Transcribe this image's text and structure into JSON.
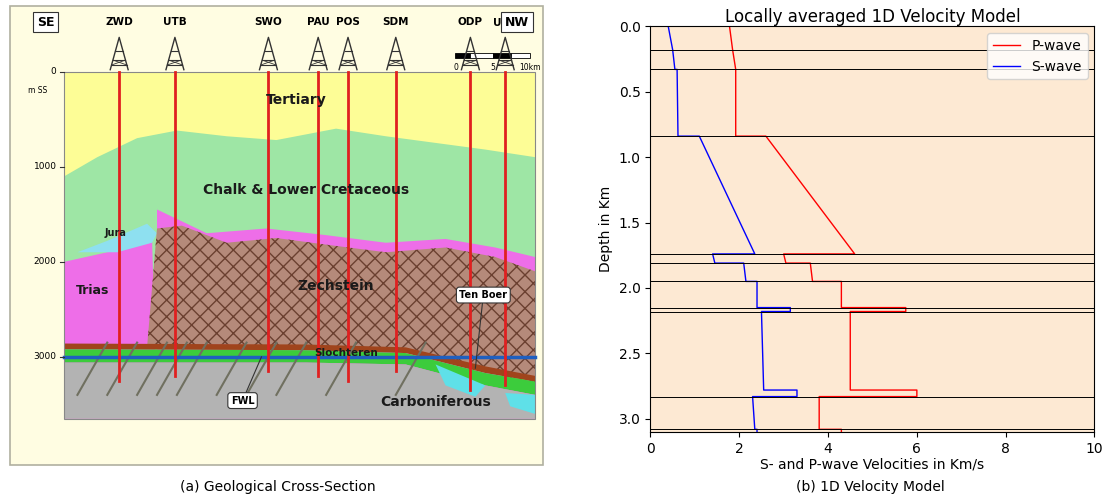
{
  "captions": [
    "(a) Geological Cross-Section",
    "(b) 1D Velocity Model"
  ],
  "cross_section": {
    "directions": [
      "SE",
      "NW"
    ],
    "wells": [
      "ZWD",
      "UTB",
      "SWO",
      "PAU",
      "POS",
      "SDM",
      "ODP",
      "USQ"
    ],
    "depth_ticks": [
      0,
      1000,
      2000,
      3000
    ],
    "depth_unit": "m SS",
    "units": [
      "Tertiary",
      "Chalk & Lower Cretaceous",
      "Jura",
      "Trias",
      "Zechstein",
      "Slochteren",
      "Carboniferous"
    ],
    "annotations": [
      "Ten Boer",
      "FWL"
    ],
    "scale_bar": [
      0,
      5,
      {
        "value": 10,
        "label": "10km"
      }
    ]
  },
  "chart_data": {
    "type": "line",
    "title": "Locally averaged 1D Velocity Model",
    "x_label": "S- and P-wave Velocities in Km/s",
    "y_label": "Depth in Km",
    "xlim": [
      0,
      10
    ],
    "ylim": [
      3.1,
      0
    ],
    "xticks": [
      0,
      2,
      4,
      6,
      8,
      10
    ],
    "yticks": [
      {
        "value": 0,
        "label": "0.0"
      },
      0.5,
      {
        "value": 1,
        "label": "1.0"
      },
      1.5,
      {
        "value": 2,
        "label": "2.0"
      },
      2.5,
      {
        "value": 3,
        "label": "3.0"
      }
    ],
    "legend": "upper right",
    "layer_boundaries": [
      0.18,
      0.33,
      0.84,
      1.74,
      1.81,
      1.95,
      2.15,
      2.18,
      2.83,
      3.08
    ],
    "series": [
      {
        "name": "P-wave",
        "color": "red",
        "x": [
          1.78,
          1.85,
          1.85,
          1.92,
          1.92,
          1.92,
          2.6,
          4.6,
          3.0,
          3.05,
          3.6,
          3.65,
          4.3,
          4.3,
          5.75,
          5.75,
          4.5,
          4.5,
          6.0,
          6.0,
          3.8,
          3.8,
          4.3,
          4.3
        ],
        "y": [
          0,
          0.18,
          0.18,
          0.33,
          0.33,
          0.84,
          0.84,
          1.74,
          1.74,
          1.81,
          1.81,
          1.95,
          1.95,
          2.15,
          2.15,
          2.18,
          2.18,
          2.78,
          2.78,
          2.83,
          2.83,
          3.08,
          3.08,
          3.1
        ]
      },
      {
        "name": "S-wave",
        "color": "blue",
        "x": [
          0.4,
          0.5,
          0.5,
          0.55,
          0.6,
          0.62,
          1.1,
          2.35,
          1.4,
          1.45,
          2.1,
          2.15,
          2.4,
          2.4,
          3.15,
          3.15,
          2.5,
          2.55,
          3.3,
          3.3,
          2.3,
          2.35,
          2.4,
          2.4
        ],
        "y": [
          0,
          0.18,
          0.18,
          0.33,
          0.33,
          0.84,
          0.84,
          1.74,
          1.74,
          1.81,
          1.81,
          1.95,
          1.95,
          2.15,
          2.15,
          2.18,
          2.18,
          2.78,
          2.78,
          2.83,
          2.83,
          3.08,
          3.08,
          3.1
        ]
      }
    ]
  }
}
